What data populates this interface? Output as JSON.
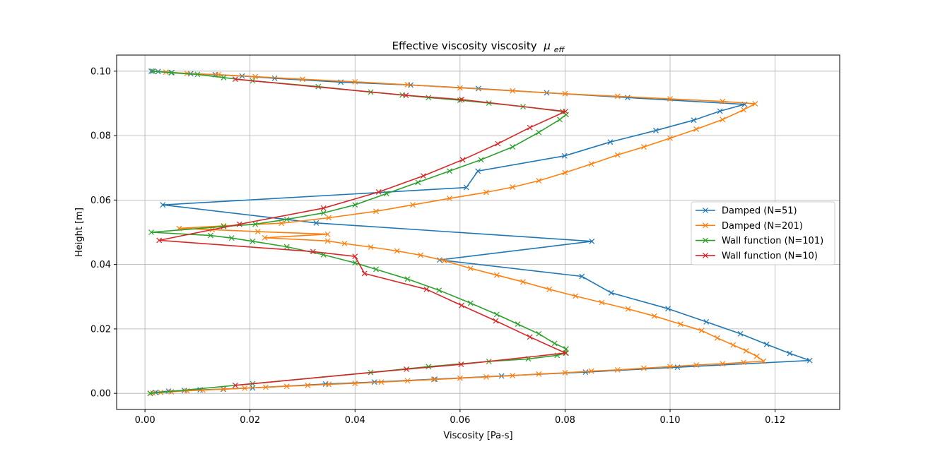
{
  "chart_data": {
    "type": "line",
    "title": "Effective viscosity viscosity",
    "title_symbol": "μ",
    "title_subscript": "eff",
    "xlabel": "Viscosity [Pa-s]",
    "ylabel": "Height [m]",
    "xlim": [
      -0.0054,
      0.1323
    ],
    "ylim": [
      -0.005,
      0.105
    ],
    "xticks": [
      0.0,
      0.02,
      0.04,
      0.06,
      0.08,
      0.1,
      0.12
    ],
    "xtick_labels": [
      "0.00",
      "0.02",
      "0.04",
      "0.06",
      "0.08",
      "0.10",
      "0.12"
    ],
    "yticks": [
      0.0,
      0.02,
      0.04,
      0.06,
      0.08,
      0.1
    ],
    "ytick_labels": [
      "0.00",
      "0.02",
      "0.04",
      "0.06",
      "0.08",
      "0.10"
    ],
    "grid": true,
    "legend_position": "center-right",
    "marker": "x",
    "series": [
      {
        "name": "Damped (N=51)",
        "color": "#1f77b4",
        "points": [
          [
            0.001,
            0.0
          ],
          [
            0.002,
            0.0003
          ],
          [
            0.0045,
            0.0007
          ],
          [
            0.0075,
            0.0009
          ],
          [
            0.0105,
            0.0011
          ],
          [
            0.0149,
            0.0013
          ],
          [
            0.0205,
            0.0017
          ],
          [
            0.0344,
            0.0029
          ],
          [
            0.0437,
            0.0035
          ],
          [
            0.0552,
            0.0044
          ],
          [
            0.0679,
            0.0054
          ],
          [
            0.0839,
            0.0066
          ],
          [
            0.1014,
            0.0081
          ],
          [
            0.1266,
            0.0102
          ],
          [
            0.1228,
            0.0124
          ],
          [
            0.1184,
            0.0152
          ],
          [
            0.1134,
            0.0185
          ],
          [
            0.1069,
            0.0222
          ],
          [
            0.0996,
            0.0263
          ],
          [
            0.0888,
            0.0312
          ],
          [
            0.0832,
            0.0363
          ],
          [
            0.0561,
            0.0414
          ],
          [
            0.0851,
            0.0472
          ],
          [
            0.0326,
            0.0529
          ],
          [
            0.0034,
            0.0585
          ],
          [
            0.0612,
            0.0639
          ],
          [
            0.0634,
            0.069
          ],
          [
            0.0799,
            0.0737
          ],
          [
            0.0886,
            0.078
          ],
          [
            0.0973,
            0.0816
          ],
          [
            0.1045,
            0.0848
          ],
          [
            0.1095,
            0.0876
          ],
          [
            0.1142,
            0.0897
          ],
          [
            0.0919,
            0.0918
          ],
          [
            0.0765,
            0.0933
          ],
          [
            0.0635,
            0.0946
          ],
          [
            0.0506,
            0.0957
          ],
          [
            0.0373,
            0.0966
          ],
          [
            0.0247,
            0.0978
          ],
          [
            0.0185,
            0.0985
          ],
          [
            0.0134,
            0.0989
          ],
          [
            0.0087,
            0.0992
          ],
          [
            0.0051,
            0.0996
          ],
          [
            0.0025,
            0.0999
          ],
          [
            0.0012,
            0.1
          ]
        ]
      },
      {
        "name": "Damped (N=201)",
        "color": "#ff7f0e",
        "points": [
          [
            0.001,
            0.0
          ],
          [
            0.0015,
            0.0001
          ],
          [
            0.003,
            0.0003
          ],
          [
            0.005,
            0.0005
          ],
          [
            0.008,
            0.0008
          ],
          [
            0.011,
            0.001
          ],
          [
            0.015,
            0.0013
          ],
          [
            0.019,
            0.0016
          ],
          [
            0.023,
            0.0019
          ],
          [
            0.027,
            0.0022
          ],
          [
            0.031,
            0.0025
          ],
          [
            0.035,
            0.0028
          ],
          [
            0.04,
            0.0031
          ],
          [
            0.045,
            0.0035
          ],
          [
            0.05,
            0.0039
          ],
          [
            0.055,
            0.0043
          ],
          [
            0.06,
            0.0047
          ],
          [
            0.065,
            0.0051
          ],
          [
            0.07,
            0.0055
          ],
          [
            0.075,
            0.006
          ],
          [
            0.08,
            0.0064
          ],
          [
            0.085,
            0.0069
          ],
          [
            0.09,
            0.0073
          ],
          [
            0.095,
            0.0078
          ],
          [
            0.1,
            0.0083
          ],
          [
            0.105,
            0.0088
          ],
          [
            0.11,
            0.0092
          ],
          [
            0.114,
            0.0096
          ],
          [
            0.1178,
            0.01
          ],
          [
            0.1165,
            0.0115
          ],
          [
            0.1145,
            0.0132
          ],
          [
            0.112,
            0.015
          ],
          [
            0.109,
            0.0172
          ],
          [
            0.106,
            0.0195
          ],
          [
            0.102,
            0.0215
          ],
          [
            0.097,
            0.024
          ],
          [
            0.092,
            0.0262
          ],
          [
            0.087,
            0.0282
          ],
          [
            0.082,
            0.0302
          ],
          [
            0.077,
            0.0323
          ],
          [
            0.072,
            0.0346
          ],
          [
            0.067,
            0.0367
          ],
          [
            0.062,
            0.0388
          ],
          [
            0.057,
            0.0412
          ],
          [
            0.0525,
            0.0429
          ],
          [
            0.048,
            0.0442
          ],
          [
            0.043,
            0.0454
          ],
          [
            0.038,
            0.0465
          ],
          [
            0.0348,
            0.0473
          ],
          [
            0.0228,
            0.0483
          ],
          [
            0.0348,
            0.0494
          ],
          [
            0.0215,
            0.0502
          ],
          [
            0.0128,
            0.0508
          ],
          [
            0.0065,
            0.0512
          ],
          [
            0.015,
            0.052
          ],
          [
            0.026,
            0.0528
          ],
          [
            0.035,
            0.0545
          ],
          [
            0.044,
            0.0565
          ],
          [
            0.051,
            0.0585
          ],
          [
            0.058,
            0.0605
          ],
          [
            0.065,
            0.0624
          ],
          [
            0.07,
            0.064
          ],
          [
            0.075,
            0.066
          ],
          [
            0.08,
            0.0685
          ],
          [
            0.085,
            0.0712
          ],
          [
            0.09,
            0.074
          ],
          [
            0.095,
            0.0765
          ],
          [
            0.1,
            0.0792
          ],
          [
            0.105,
            0.082
          ],
          [
            0.11,
            0.085
          ],
          [
            0.114,
            0.088
          ],
          [
            0.1162,
            0.0899
          ],
          [
            0.11,
            0.0906
          ],
          [
            0.1,
            0.0914
          ],
          [
            0.09,
            0.0922
          ],
          [
            0.08,
            0.093
          ],
          [
            0.07,
            0.0939
          ],
          [
            0.06,
            0.0948
          ],
          [
            0.05,
            0.0958
          ],
          [
            0.04,
            0.0967
          ],
          [
            0.03,
            0.0975
          ],
          [
            0.021,
            0.0983
          ],
          [
            0.014,
            0.0989
          ],
          [
            0.008,
            0.0993
          ],
          [
            0.004,
            0.0997
          ],
          [
            0.0015,
            0.1
          ]
        ]
      },
      {
        "name": "Wall function (N=101)",
        "color": "#2ca02c",
        "points": [
          [
            0.001,
            0.0
          ],
          [
            0.0205,
            0.003
          ],
          [
            0.043,
            0.0065
          ],
          [
            0.054,
            0.0083
          ],
          [
            0.0655,
            0.0099
          ],
          [
            0.073,
            0.0107
          ],
          [
            0.0785,
            0.0118
          ],
          [
            0.0802,
            0.0125
          ],
          [
            0.0802,
            0.0138
          ],
          [
            0.078,
            0.0155
          ],
          [
            0.075,
            0.0185
          ],
          [
            0.071,
            0.0215
          ],
          [
            0.067,
            0.0245
          ],
          [
            0.062,
            0.028
          ],
          [
            0.056,
            0.032
          ],
          [
            0.05,
            0.0355
          ],
          [
            0.044,
            0.0385
          ],
          [
            0.04,
            0.0405
          ],
          [
            0.034,
            0.043
          ],
          [
            0.027,
            0.0455
          ],
          [
            0.0205,
            0.0472
          ],
          [
            0.0165,
            0.0482
          ],
          [
            0.0125,
            0.049
          ],
          [
            0.0012,
            0.05
          ],
          [
            0.015,
            0.0518
          ],
          [
            0.021,
            0.0525
          ],
          [
            0.027,
            0.054
          ],
          [
            0.034,
            0.056
          ],
          [
            0.04,
            0.0585
          ],
          [
            0.046,
            0.062
          ],
          [
            0.052,
            0.0655
          ],
          [
            0.058,
            0.069
          ],
          [
            0.064,
            0.0725
          ],
          [
            0.07,
            0.0765
          ],
          [
            0.075,
            0.081
          ],
          [
            0.079,
            0.085
          ],
          [
            0.0802,
            0.0865
          ],
          [
            0.0795,
            0.0875
          ],
          [
            0.072,
            0.089
          ],
          [
            0.0655,
            0.0901
          ],
          [
            0.06,
            0.091
          ],
          [
            0.054,
            0.0918
          ],
          [
            0.049,
            0.0926
          ],
          [
            0.043,
            0.0935
          ],
          [
            0.033,
            0.0952
          ],
          [
            0.0205,
            0.097
          ],
          [
            0.015,
            0.098
          ],
          [
            0.01,
            0.099
          ],
          [
            0.005,
            0.0995
          ],
          [
            0.0015,
            0.1
          ]
        ]
      },
      {
        "name": "Wall function (N=10)",
        "color": "#d62728",
        "points": [
          [
            0.0172,
            0.0025
          ],
          [
            0.0498,
            0.0075
          ],
          [
            0.0602,
            0.009
          ],
          [
            0.0801,
            0.0125
          ],
          [
            0.0733,
            0.0175
          ],
          [
            0.0668,
            0.0225
          ],
          [
            0.0603,
            0.0273
          ],
          [
            0.0536,
            0.0323
          ],
          [
            0.0418,
            0.0372
          ],
          [
            0.04,
            0.0425
          ],
          [
            0.032,
            0.044
          ],
          [
            0.0027,
            0.0475
          ],
          [
            0.018,
            0.0525
          ],
          [
            0.034,
            0.0575
          ],
          [
            0.0445,
            0.0625
          ],
          [
            0.053,
            0.0675
          ],
          [
            0.0605,
            0.0725
          ],
          [
            0.0672,
            0.0775
          ],
          [
            0.0733,
            0.0825
          ],
          [
            0.0801,
            0.0875
          ],
          [
            0.0603,
            0.0912
          ],
          [
            0.0497,
            0.0925
          ],
          [
            0.0172,
            0.0975
          ]
        ]
      }
    ]
  }
}
